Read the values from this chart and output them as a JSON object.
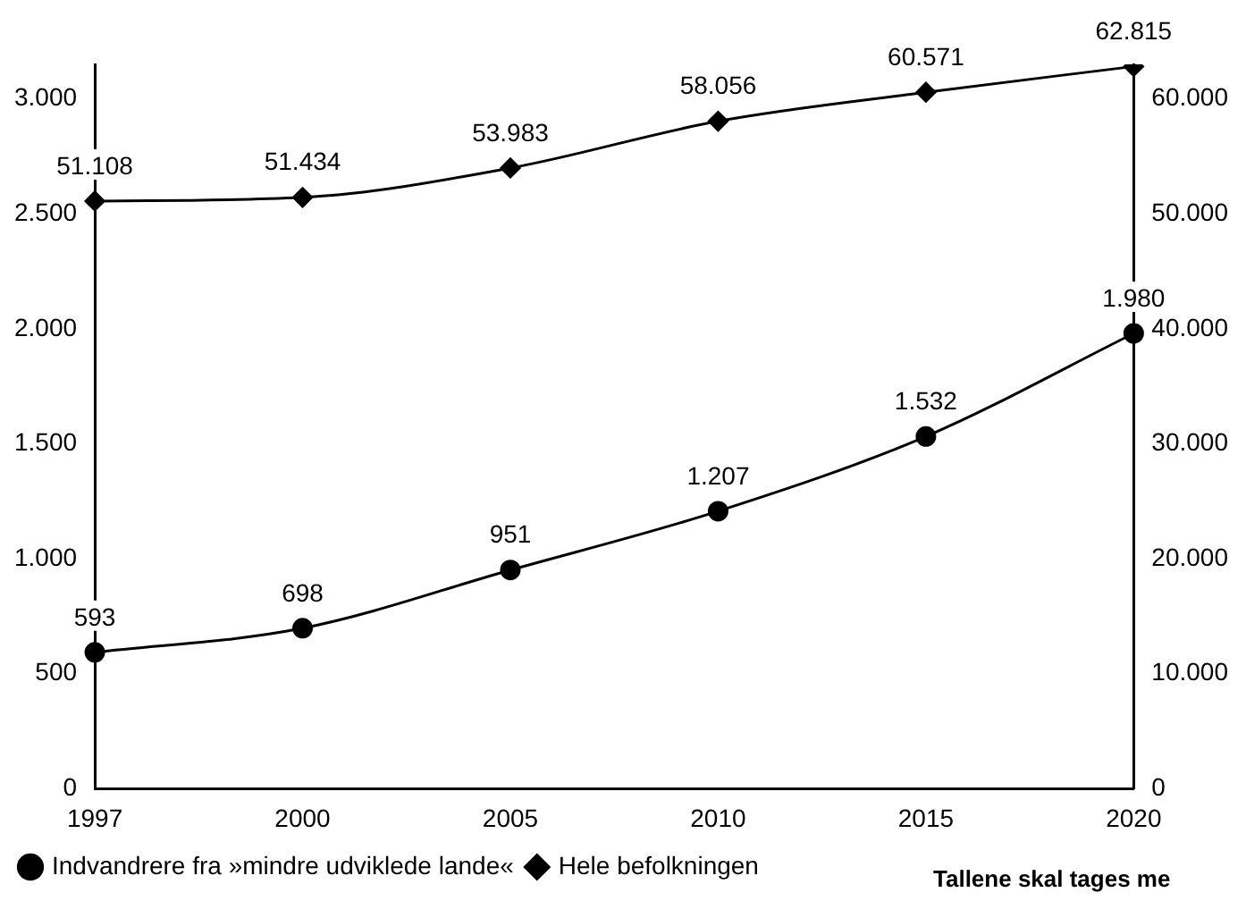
{
  "chart_data": {
    "type": "line",
    "categories": [
      "1997",
      "2000",
      "2005",
      "2010",
      "2015",
      "2020"
    ],
    "series": [
      {
        "name": "Indvandrere fra »mindre udviklede lande«",
        "color": "#000000",
        "marker": "circle",
        "values": [
          593,
          698,
          951,
          1207,
          1532,
          1980
        ],
        "value_labels": [
          "593",
          "698",
          "951",
          "1.207",
          "1.532",
          "1.980"
        ]
      },
      {
        "name": "Hele befolkningen",
        "color": "#000000",
        "marker": "diamond",
        "axis": "y2",
        "values": [
          51108,
          51434,
          53983,
          58056,
          60571,
          62815
        ],
        "value_labels": [
          "51.108",
          "51.434",
          "53.983",
          "58.056",
          "60.571",
          "62.815"
        ]
      }
    ],
    "ylim": [
      0,
      3150
    ],
    "yticks": [
      0,
      500,
      {
        "value": 1000,
        "label": "1.000"
      },
      {
        "value": 1500,
        "label": "1.500"
      },
      {
        "value": 2000,
        "label": "2.000"
      },
      {
        "value": 2500,
        "label": "2.500"
      },
      {
        "value": 3000,
        "label": "3.000"
      }
    ],
    "y2lim": [
      0,
      63000
    ],
    "y2ticks": [
      0,
      {
        "value": 10000,
        "label": "10.000"
      },
      {
        "value": 20000,
        "label": "20.000"
      },
      {
        "value": 30000,
        "label": "30.000"
      },
      {
        "value": 40000,
        "label": "40.000"
      },
      {
        "value": 50000,
        "label": "50.000"
      },
      {
        "value": 60000,
        "label": "60.000"
      }
    ],
    "legend": "bottom left",
    "line_style": "solid",
    "annotations": [
      "Tallene skal tages me"
    ]
  }
}
